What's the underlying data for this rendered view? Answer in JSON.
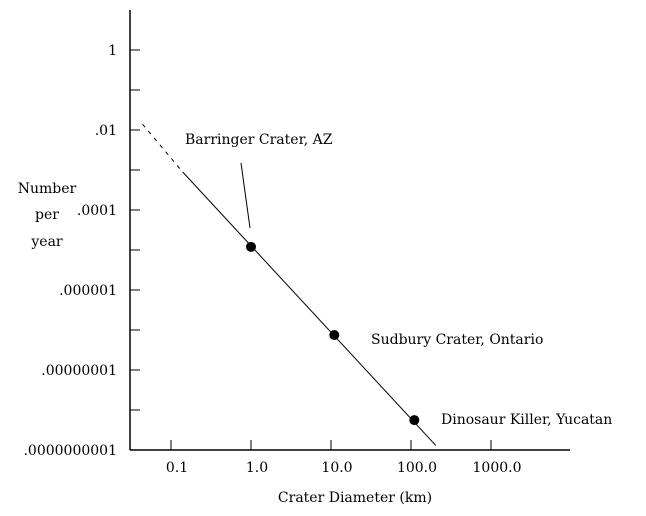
{
  "chart_data": {
    "type": "line",
    "title": "",
    "xlabel": "Crater Diameter (km)",
    "ylabel": [
      "Number",
      "per",
      "year"
    ],
    "xscale": "log",
    "yscale": "log",
    "xlim": [
      0.03,
      10000
    ],
    "ylim": [
      1e-10,
      10
    ],
    "grid": false,
    "x_ticks": [
      {
        "value": 0.1,
        "label": "0.1"
      },
      {
        "value": 1,
        "label": "1.0"
      },
      {
        "value": 10,
        "label": "10.0"
      },
      {
        "value": 100,
        "label": "100.0"
      },
      {
        "value": 1000,
        "label": "1000.0"
      }
    ],
    "y_ticks": [
      {
        "value": 1,
        "label": "1"
      },
      {
        "value": 0.1,
        "label": ""
      },
      {
        "value": 0.01,
        "label": ".01"
      },
      {
        "value": 0.001,
        "label": ""
      },
      {
        "value": 0.0001,
        "label": ".0001"
      },
      {
        "value": 1e-05,
        "label": ""
      },
      {
        "value": 1e-06,
        "label": ".000001"
      },
      {
        "value": 1e-07,
        "label": ""
      },
      {
        "value": 1e-08,
        "label": ".00000001"
      },
      {
        "value": 1e-09,
        "label": ""
      },
      {
        "value": 1e-10,
        "label": ".0000000001"
      }
    ],
    "trend_line": {
      "dashed": [
        [
          0.044,
          0.014
        ],
        [
          0.14,
          0.00089
        ]
      ],
      "solid": [
        [
          0.14,
          0.00089
        ],
        [
          204,
          1.3e-10
        ]
      ]
    },
    "points": [
      {
        "name": "Barringer Crater, AZ",
        "x": 1.0,
        "y": 1.2e-05
      },
      {
        "name": "Sudbury Crater, Ontario",
        "x": 11,
        "y": 7.5e-08
      },
      {
        "name": "Dinosaur Killer, Yucatan",
        "x": 110,
        "y": 5.6e-10
      }
    ]
  }
}
